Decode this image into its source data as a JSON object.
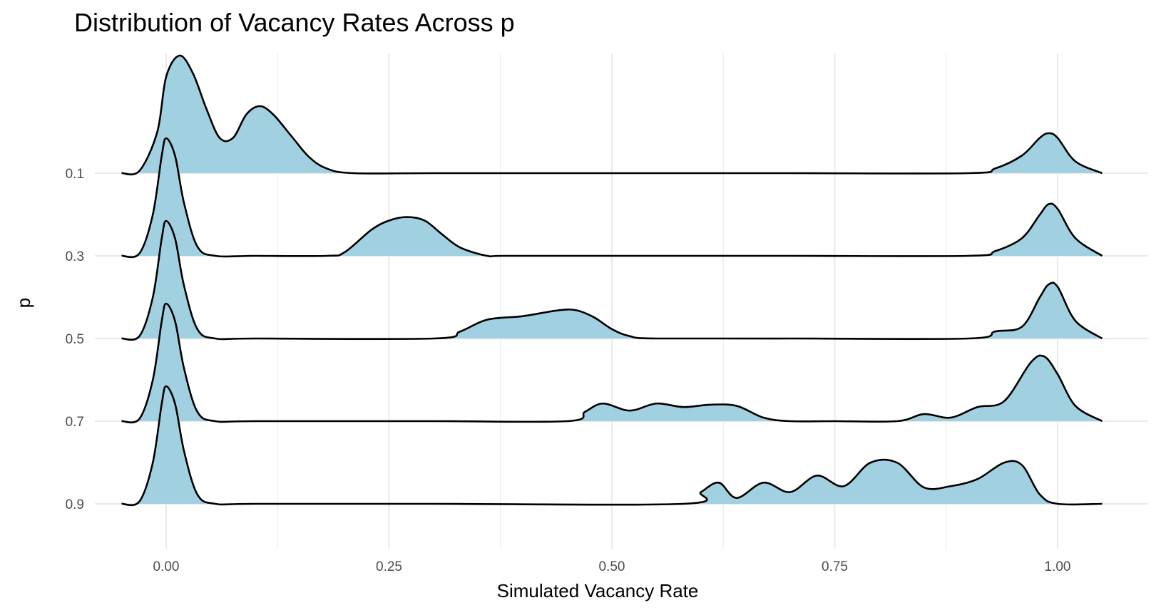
{
  "chart_data": {
    "type": "ridgeline",
    "title": "Distribution of Vacancy Rates Across p",
    "xlabel": "Simulated Vacancy Rate",
    "ylabel": "p",
    "xlim": [
      -0.055,
      1.045
    ],
    "x_ticks": [
      0,
      0.25,
      0.5,
      0.75,
      1
    ],
    "x_tick_labels": [
      "0.00",
      "0.25",
      "0.50",
      "0.75",
      "1.00"
    ],
    "categories": [
      "0.1",
      "0.3",
      "0.5",
      "0.7",
      "0.9"
    ],
    "grid": true,
    "fill_color": "#a1d1e1",
    "line_color": "#000000",
    "grid_color": "#ebebeb",
    "series": [
      {
        "category": "0.1",
        "x": [
          -0.05,
          -0.03,
          -0.01,
          0.0,
          0.015,
          0.03,
          0.045,
          0.06,
          0.075,
          0.09,
          0.105,
          0.12,
          0.14,
          0.16,
          0.18,
          0.21,
          0.3,
          0.5,
          0.7,
          0.9,
          0.93,
          0.96,
          0.98,
          0.99,
          1.0,
          1.02,
          1.05
        ],
        "y": [
          0.0,
          0.02,
          0.35,
          0.82,
          1.0,
          0.85,
          0.55,
          0.3,
          0.3,
          0.5,
          0.57,
          0.5,
          0.32,
          0.14,
          0.04,
          0.0,
          0.0,
          0.0,
          0.0,
          0.0,
          0.04,
          0.15,
          0.3,
          0.34,
          0.3,
          0.1,
          0.0
        ]
      },
      {
        "category": "0.3",
        "x": [
          -0.05,
          -0.03,
          -0.015,
          -0.005,
          0.0,
          0.01,
          0.02,
          0.035,
          0.055,
          0.1,
          0.18,
          0.2,
          0.23,
          0.25,
          0.27,
          0.29,
          0.31,
          0.33,
          0.36,
          0.38,
          0.5,
          0.7,
          0.9,
          0.93,
          0.96,
          0.98,
          0.99,
          1.0,
          1.02,
          1.05
        ],
        "y": [
          0.0,
          0.02,
          0.35,
          0.85,
          1.0,
          0.85,
          0.45,
          0.08,
          0.0,
          0.0,
          0.0,
          0.03,
          0.22,
          0.3,
          0.33,
          0.3,
          0.18,
          0.07,
          0.0,
          0.0,
          0.0,
          0.0,
          0.0,
          0.04,
          0.15,
          0.35,
          0.44,
          0.4,
          0.15,
          0.0
        ]
      },
      {
        "category": "0.5",
        "x": [
          -0.05,
          -0.03,
          -0.015,
          -0.005,
          0.0,
          0.01,
          0.02,
          0.035,
          0.055,
          0.1,
          0.3,
          0.33,
          0.36,
          0.4,
          0.44,
          0.46,
          0.48,
          0.5,
          0.52,
          0.55,
          0.7,
          0.9,
          0.93,
          0.96,
          0.98,
          0.99,
          1.0,
          1.02,
          1.05
        ],
        "y": [
          0.0,
          0.02,
          0.35,
          0.85,
          1.0,
          0.85,
          0.45,
          0.08,
          0.0,
          0.0,
          0.0,
          0.06,
          0.16,
          0.19,
          0.24,
          0.24,
          0.18,
          0.08,
          0.02,
          0.0,
          0.0,
          0.0,
          0.06,
          0.1,
          0.35,
          0.46,
          0.44,
          0.15,
          0.0
        ]
      },
      {
        "category": "0.7",
        "x": [
          -0.05,
          -0.03,
          -0.015,
          -0.005,
          0.0,
          0.01,
          0.02,
          0.035,
          0.055,
          0.1,
          0.3,
          0.45,
          0.47,
          0.49,
          0.52,
          0.55,
          0.58,
          0.61,
          0.64,
          0.67,
          0.7,
          0.75,
          0.82,
          0.85,
          0.88,
          0.91,
          0.94,
          0.97,
          0.985,
          1.0,
          1.02,
          1.05
        ],
        "y": [
          0.0,
          0.02,
          0.35,
          0.85,
          1.0,
          0.85,
          0.45,
          0.08,
          0.0,
          0.0,
          0.0,
          0.0,
          0.08,
          0.15,
          0.09,
          0.15,
          0.12,
          0.14,
          0.13,
          0.03,
          0.0,
          0.0,
          0.0,
          0.06,
          0.03,
          0.12,
          0.17,
          0.5,
          0.55,
          0.4,
          0.13,
          0.0
        ]
      },
      {
        "category": "0.9",
        "x": [
          -0.05,
          -0.03,
          -0.015,
          -0.005,
          0.0,
          0.01,
          0.02,
          0.035,
          0.055,
          0.1,
          0.3,
          0.58,
          0.6,
          0.62,
          0.64,
          0.67,
          0.7,
          0.73,
          0.76,
          0.79,
          0.82,
          0.85,
          0.88,
          0.91,
          0.94,
          0.96,
          0.98,
          1.0,
          1.05
        ],
        "y": [
          0.0,
          0.02,
          0.35,
          0.85,
          1.0,
          0.85,
          0.45,
          0.08,
          0.0,
          0.0,
          0.0,
          0.0,
          0.1,
          0.18,
          0.05,
          0.18,
          0.1,
          0.24,
          0.15,
          0.35,
          0.35,
          0.14,
          0.15,
          0.21,
          0.35,
          0.33,
          0.08,
          0.0,
          0.0
        ]
      }
    ]
  }
}
